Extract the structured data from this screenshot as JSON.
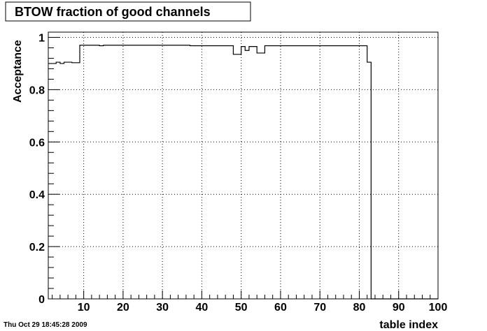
{
  "title": "BTOW fraction of good channels",
  "timestamp": "Thu Oct 29 18:45:28 2009",
  "chart_data": {
    "type": "line",
    "title": "BTOW fraction of good channels",
    "xlabel": "table index",
    "ylabel": "Acceptance",
    "xlim": [
      1,
      100
    ],
    "ylim": [
      0,
      1.02
    ],
    "xticks": [
      10,
      20,
      30,
      40,
      50,
      60,
      70,
      80,
      90,
      100
    ],
    "xtick_labels": [
      "10",
      "20",
      "30",
      "40",
      "50",
      "60",
      "70",
      "80",
      "90",
      "100"
    ],
    "yticks": [
      0,
      0.2,
      0.4,
      0.6,
      0.8,
      1
    ],
    "ytick_labels": [
      "0",
      "0.2",
      "0.4",
      "0.6",
      "0.8",
      "1"
    ],
    "grid": true,
    "legend": "none",
    "series": [
      {
        "style": "step",
        "bins": [
          [
            1,
            2,
            0.9
          ],
          [
            2,
            3,
            0.9
          ],
          [
            3,
            4,
            0.905
          ],
          [
            4,
            5,
            0.9
          ],
          [
            5,
            6,
            0.905
          ],
          [
            6,
            7,
            0.905
          ],
          [
            7,
            8,
            0.903
          ],
          [
            8,
            9,
            0.903
          ],
          [
            9,
            14,
            0.97
          ],
          [
            14,
            15,
            0.968
          ],
          [
            15,
            37,
            0.97
          ],
          [
            37,
            48,
            0.968
          ],
          [
            48,
            49,
            0.935
          ],
          [
            49,
            50,
            0.935
          ],
          [
            50,
            51,
            0.965
          ],
          [
            51,
            52,
            0.95
          ],
          [
            52,
            53,
            0.965
          ],
          [
            53,
            54,
            0.965
          ],
          [
            54,
            55,
            0.94
          ],
          [
            55,
            56,
            0.94
          ],
          [
            56,
            81,
            0.968
          ],
          [
            81,
            82,
            0.968
          ],
          [
            82,
            83,
            0.905
          ],
          [
            83,
            100,
            0
          ]
        ]
      }
    ]
  }
}
